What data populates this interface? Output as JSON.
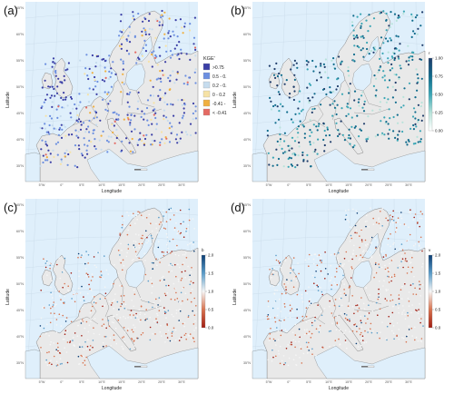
{
  "panels": [
    {
      "id": "a",
      "label": "(a)",
      "metric": "kge"
    },
    {
      "id": "b",
      "label": "(b)",
      "metric": "r"
    },
    {
      "id": "c",
      "label": "(c)",
      "metric": "b"
    },
    {
      "id": "d",
      "label": "(d)",
      "metric": "v"
    }
  ],
  "axes": {
    "xlabel": "Longitude",
    "ylabel": "Latitude",
    "lat_ticks": [
      "65°N",
      "60°N",
      "55°N",
      "50°N",
      "45°N",
      "40°N",
      "35°N"
    ],
    "lon_ticks": [
      "5°W",
      "0°",
      "5°E",
      "10°E",
      "15°E",
      "20°E",
      "25°E",
      "30°E"
    ]
  },
  "legend_a": {
    "title": "KGE'",
    "items": [
      {
        "label": ">0.75",
        "color": "#3b3fa6"
      },
      {
        "label": "0.5 - 0.75",
        "color": "#6c8fe0"
      },
      {
        "label": "0.2 - 0.5",
        "color": "#c6dcee"
      },
      {
        "label": "0 - 0.2",
        "color": "#f6e2a5"
      },
      {
        "label": "-0.41 - 0",
        "color": "#f0b040"
      },
      {
        "label": "< -0.41",
        "color": "#e46a63"
      }
    ]
  },
  "colorbar_b": {
    "title": "r",
    "ticks": [
      "1.00",
      "0.75",
      "0.50",
      "0.25",
      "0.00"
    ],
    "colors": [
      "#1f3d6b",
      "#0f6b8c",
      "#3ba6b5",
      "#b8e3da",
      "#ffffff"
    ]
  },
  "colorbar_c": {
    "title": "b",
    "ticks": [
      "2.0",
      "1.5",
      "1.0",
      "0.5",
      "0.0"
    ],
    "colors": [
      "#0b3d73",
      "#5a9cc9",
      "#f6f6f6",
      "#d8734f",
      "#a01d12"
    ]
  },
  "colorbar_d": {
    "title": "v",
    "ticks": [
      "2.0",
      "1.5",
      "1.0",
      "0.5",
      "0.0"
    ],
    "colors": [
      "#0b3d73",
      "#5a9cc9",
      "#f6f6f6",
      "#d8734f",
      "#a01d12"
    ]
  },
  "colors": {
    "sea": "#dfeffb",
    "land": "#e9e9e9",
    "border": "#6b6b6b",
    "grid": "#c9dbe8"
  }
}
